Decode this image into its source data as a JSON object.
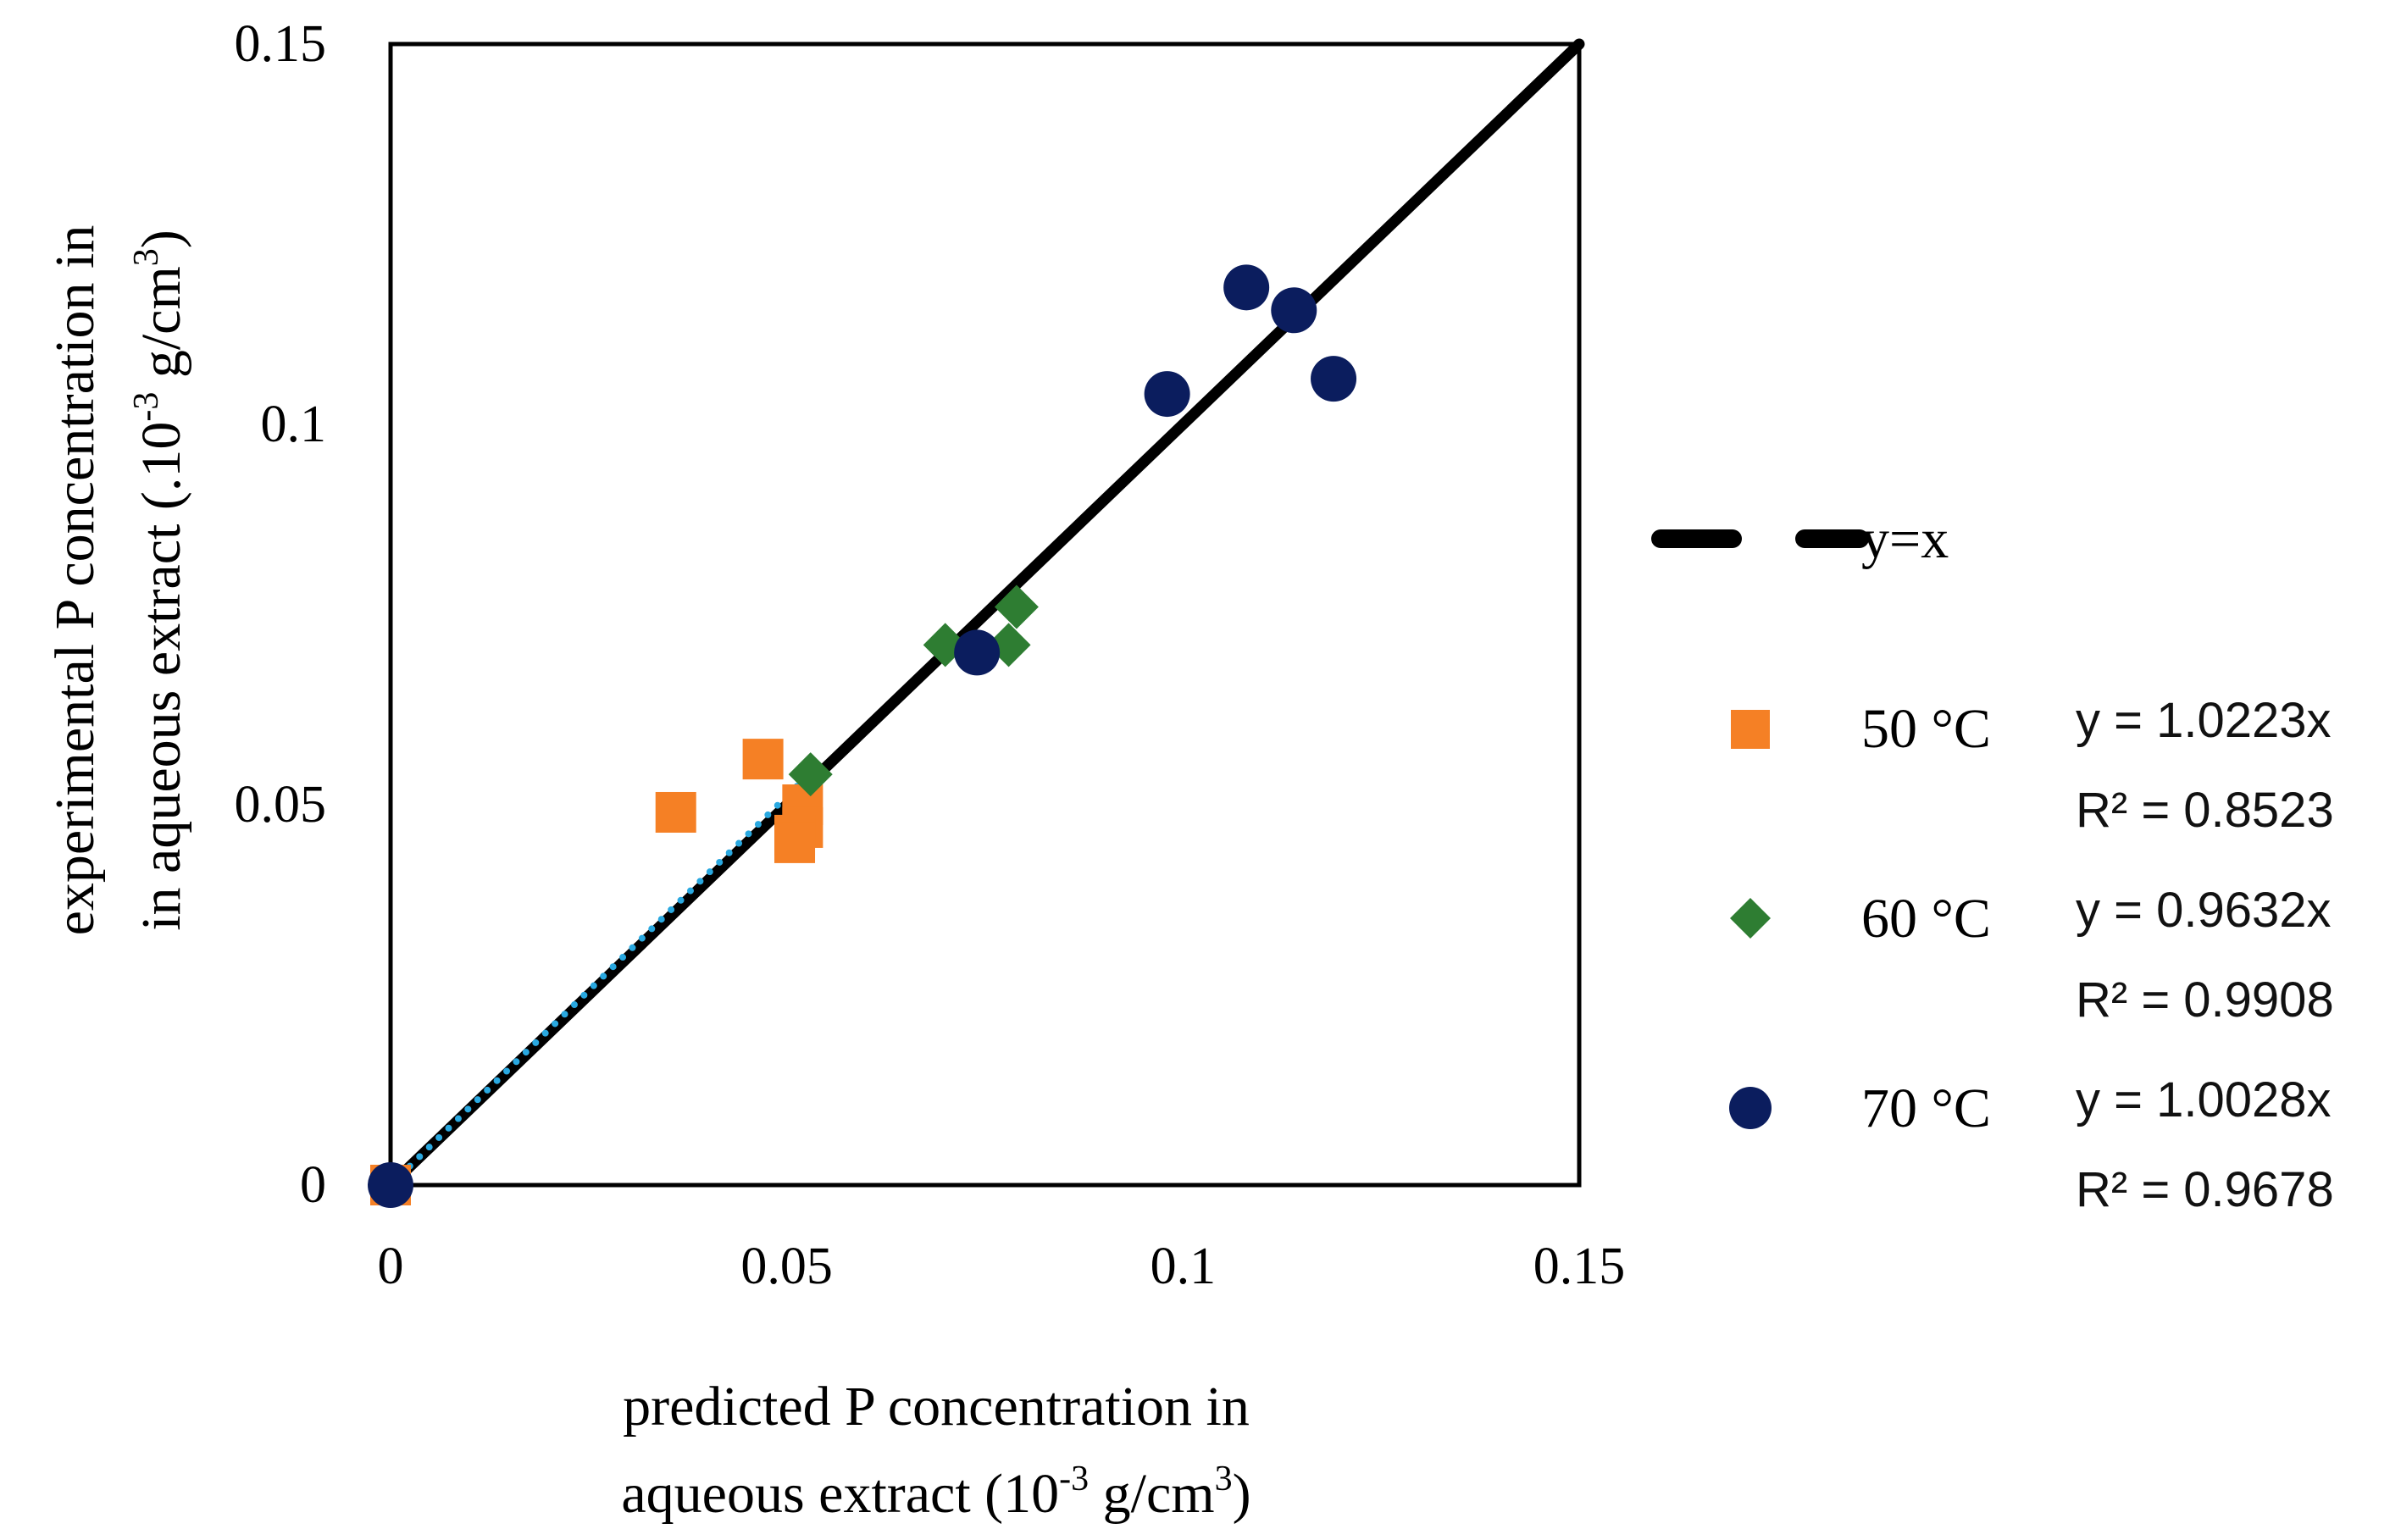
{
  "chart_data": {
    "type": "scatter",
    "xlabel_line1": "predicted P concentration in",
    "xlabel_line2_pre": "aqueous extract (10",
    "xlabel_line2_sup": "-3",
    "xlabel_line2_mid": " g/cm",
    "xlabel_line2_sup2": "3",
    "xlabel_line2_post": ")",
    "ylabel_line1_pre": "experimental P concentration in",
    "ylabel_line2_pre": "in aqueous extract (.10",
    "ylabel_line2_sup": "-3",
    "ylabel_line2_mid": " g/cm",
    "ylabel_line2_sup2": "3",
    "ylabel_line2_post": ")",
    "xlim": [
      0,
      0.15
    ],
    "ylim": [
      0,
      0.15
    ],
    "xticks": [
      "0",
      "0.05",
      "0.1",
      "0.15"
    ],
    "yticks": [
      "0",
      "0.05",
      "0.1",
      "0.15"
    ],
    "tick_values": [
      0,
      0.05,
      0.1,
      0.15
    ],
    "reference_line": {
      "label": "y=x",
      "from": [
        0,
        0
      ],
      "to": [
        0.15,
        0.15
      ],
      "color": "#000000"
    },
    "series": [
      {
        "name": "50 °C",
        "marker": "square",
        "color": "#F58025",
        "equation": "y = 1.0223x",
        "r2": "R² = 0.8523",
        "x": [
          0,
          0.036,
          0.047,
          0.052,
          0.052,
          0.051,
          0.051
        ],
        "y": [
          0,
          0.049,
          0.056,
          0.05,
          0.047,
          0.046,
          0.045
        ],
        "trend_slope": 1.0223,
        "trend_xmax": 0.052,
        "trend_color": "#29A8E0"
      },
      {
        "name": "60 °C",
        "marker": "diamond",
        "color": "#2E7D32",
        "equation": "y = 0.9632x",
        "r2": "R² = 0.9908",
        "x": [
          0.053,
          0.07,
          0.078,
          0.079
        ],
        "y": [
          0.054,
          0.071,
          0.071,
          0.076
        ]
      },
      {
        "name": "70 °C",
        "marker": "circle",
        "color": "#0B1D5E",
        "equation": "y = 1.0028x",
        "r2": "R² = 0.9678",
        "x": [
          0,
          0.074,
          0.098,
          0.108,
          0.114,
          0.119
        ],
        "y": [
          0,
          0.07,
          0.104,
          0.118,
          0.115,
          0.106
        ]
      }
    ]
  }
}
